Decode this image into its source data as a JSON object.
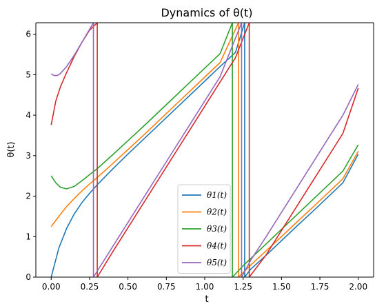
{
  "chart_data": {
    "type": "line",
    "title": "Dynamics of θ(t)",
    "xlabel": "t",
    "ylabel": "θ(t)",
    "xlim": [
      -0.1,
      2.1
    ],
    "ylim": [
      0,
      6.283
    ],
    "xticks": [
      "0.00",
      "0.25",
      "0.50",
      "0.75",
      "1.00",
      "1.25",
      "1.50",
      "1.75",
      "2.00"
    ],
    "yticks": [
      "0",
      "1",
      "2",
      "3",
      "4",
      "5",
      "6"
    ],
    "legend_position": "bottom-center",
    "series": [
      {
        "name": "θ1(t)",
        "color": "#1f77b4",
        "segments": [
          {
            "x": [
              0.0,
              0.05,
              0.1,
              0.15,
              0.2,
              0.25,
              0.3,
              0.4,
              0.5,
              0.6,
              0.7,
              0.8,
              0.9,
              1.0,
              1.1,
              1.2,
              1.26
            ],
            "y": [
              0.0,
              0.72,
              1.2,
              1.56,
              1.84,
              2.07,
              2.28,
              2.67,
              3.04,
              3.4,
              3.76,
              4.12,
              4.48,
              4.84,
              5.2,
              5.55,
              6.283
            ]
          },
          {
            "x": [
              1.26,
              1.3,
              1.4,
              1.5,
              1.6,
              1.7,
              1.8,
              1.9,
              2.0
            ],
            "y": [
              0.0,
              0.2,
              0.54,
              0.9,
              1.26,
              1.61,
              1.97,
              2.33,
              3.04
            ]
          }
        ]
      },
      {
        "name": "θ2(t)",
        "color": "#ff7f0e",
        "segments": [
          {
            "x": [
              0.0,
              0.05,
              0.1,
              0.15,
              0.2,
              0.25,
              0.3,
              0.4,
              0.5,
              0.6,
              0.7,
              0.8,
              0.9,
              1.0,
              1.1,
              1.22
            ],
            "y": [
              1.25,
              1.5,
              1.74,
              1.94,
              2.13,
              2.3,
              2.46,
              2.8,
              3.15,
              3.5,
              3.86,
              4.22,
              4.58,
              4.94,
              5.3,
              6.283
            ]
          },
          {
            "x": [
              1.22,
              1.3,
              1.4,
              1.5,
              1.6,
              1.7,
              1.8,
              1.9,
              2.0
            ],
            "y": [
              0.0,
              0.3,
              0.65,
              1.0,
              1.36,
              1.71,
              2.07,
              2.43,
              3.11
            ]
          }
        ]
      },
      {
        "name": "θ3(t)",
        "color": "#2ca02c",
        "segments": [
          {
            "x": [
              0.0,
              0.03,
              0.06,
              0.1,
              0.15,
              0.2,
              0.25,
              0.3,
              0.4,
              0.5,
              0.6,
              0.7,
              0.8,
              0.9,
              1.0,
              1.1,
              1.18
            ],
            "y": [
              2.5,
              2.33,
              2.22,
              2.18,
              2.24,
              2.38,
              2.53,
              2.68,
              3.02,
              3.37,
              3.72,
              4.08,
              4.44,
              4.8,
              5.16,
              5.52,
              6.283
            ]
          },
          {
            "x": [
              1.18,
              1.25,
              1.3,
              1.4,
              1.5,
              1.6,
              1.7,
              1.8,
              1.9,
              2.0
            ],
            "y": [
              0.0,
              0.28,
              0.46,
              0.82,
              1.18,
              1.54,
              1.9,
              2.26,
              2.62,
              3.27
            ]
          }
        ]
      },
      {
        "name": "θ4(t)",
        "color": "#d62728",
        "segments": [
          {
            "x": [
              0.0,
              0.03,
              0.06,
              0.1,
              0.15,
              0.2,
              0.25,
              0.3
            ],
            "y": [
              3.76,
              4.35,
              4.7,
              5.05,
              5.45,
              5.8,
              6.1,
              6.283
            ]
          },
          {
            "x": [
              0.3,
              0.4,
              0.5,
              0.6,
              0.7,
              0.8,
              0.9,
              1.0,
              1.1,
              1.2,
              1.29
            ],
            "y": [
              0.0,
              0.62,
              1.22,
              1.82,
              2.42,
              3.02,
              3.62,
              4.22,
              4.82,
              5.42,
              6.283
            ]
          },
          {
            "x": [
              1.29,
              1.4,
              1.5,
              1.6,
              1.7,
              1.8,
              1.9,
              2.0
            ],
            "y": [
              0.0,
              0.55,
              1.15,
              1.75,
              2.35,
              2.95,
              3.55,
              4.67
            ]
          }
        ]
      },
      {
        "name": "θ5(t)",
        "color": "#9467bd",
        "segments": [
          {
            "x": [
              0.0,
              0.02,
              0.04,
              0.06,
              0.1,
              0.15,
              0.2,
              0.25,
              0.275
            ],
            "y": [
              5.02,
              4.98,
              4.98,
              5.03,
              5.2,
              5.48,
              5.8,
              6.12,
              6.283
            ]
          },
          {
            "x": [
              0.275,
              0.4,
              0.5,
              0.6,
              0.7,
              0.8,
              0.9,
              1.0,
              1.1,
              1.24
            ],
            "y": [
              0.0,
              0.75,
              1.35,
              1.95,
              2.55,
              3.15,
              3.75,
              4.35,
              4.95,
              6.283
            ]
          },
          {
            "x": [
              1.24,
              1.3,
              1.4,
              1.5,
              1.6,
              1.7,
              1.8,
              1.9,
              2.0
            ],
            "y": [
              0.0,
              0.42,
              1.0,
              1.6,
              2.2,
              2.8,
              3.4,
              4.0,
              4.76
            ]
          }
        ]
      }
    ]
  }
}
